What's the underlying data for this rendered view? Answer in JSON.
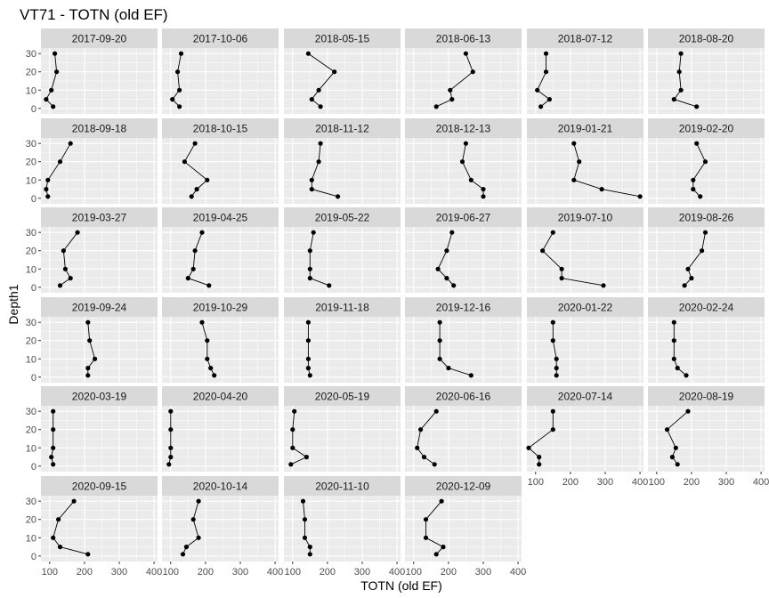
{
  "chart_data": {
    "type": "line",
    "title": "VT71  -  TOTN (old EF)",
    "xlabel": "TOTN (old EF)",
    "ylabel": "Depth1",
    "xlim": [
      75,
      410
    ],
    "ylim": [
      33,
      -3
    ],
    "x_ticks": [
      100,
      200,
      300,
      400
    ],
    "y_ticks": [
      0,
      10,
      20,
      30
    ],
    "grid": true,
    "layout": {
      "columns": 6,
      "rows": 6
    },
    "depths": [
      1,
      5,
      10,
      20,
      30
    ],
    "panels": [
      {
        "label": "2017-09-20",
        "x": [
          110,
          90,
          105,
          120,
          115
        ]
      },
      {
        "label": "2017-10-06",
        "x": [
          125,
          105,
          125,
          120,
          130
        ]
      },
      {
        "label": "2018-05-15",
        "x": [
          180,
          155,
          175,
          220,
          145
        ]
      },
      {
        "label": "2018-06-13",
        "x": [
          165,
          210,
          205,
          270,
          250
        ]
      },
      {
        "label": "2018-07-12",
        "x": [
          115,
          140,
          105,
          130,
          130
        ]
      },
      {
        "label": "2018-08-20",
        "x": [
          215,
          150,
          170,
          165,
          170
        ]
      },
      {
        "label": "2018-09-18",
        "x": [
          95,
          90,
          95,
          130,
          160
        ]
      },
      {
        "label": "2018-10-15",
        "x": [
          160,
          175,
          205,
          140,
          170
        ]
      },
      {
        "label": "2018-11-12",
        "x": [
          230,
          155,
          155,
          175,
          180
        ]
      },
      {
        "label": "2018-12-13",
        "x": [
          300,
          300,
          265,
          240,
          250
        ]
      },
      {
        "label": "2019-01-21",
        "x": [
          400,
          290,
          210,
          225,
          210
        ]
      },
      {
        "label": "2019-02-20",
        "x": [
          225,
          205,
          205,
          240,
          215
        ]
      },
      {
        "label": "2019-03-27",
        "x": [
          130,
          160,
          145,
          140,
          180
        ]
      },
      {
        "label": "2019-04-25",
        "x": [
          210,
          150,
          165,
          170,
          190
        ]
      },
      {
        "label": "2019-05-22",
        "x": [
          205,
          150,
          150,
          150,
          160
        ]
      },
      {
        "label": "2019-06-27",
        "x": [
          215,
          195,
          170,
          195,
          210
        ]
      },
      {
        "label": "2019-07-10",
        "x": [
          295,
          175,
          175,
          120,
          150
        ]
      },
      {
        "label": "2019-08-26",
        "x": [
          180,
          200,
          190,
          230,
          240
        ]
      },
      {
        "label": "2019-09-24",
        "x": [
          210,
          210,
          230,
          215,
          210
        ]
      },
      {
        "label": "2019-10-29",
        "x": [
          225,
          215,
          205,
          205,
          190
        ]
      },
      {
        "label": "2019-11-18",
        "x": [
          150,
          145,
          145,
          145,
          145
        ]
      },
      {
        "label": "2019-12-16",
        "x": [
          265,
          200,
          175,
          175,
          175
        ]
      },
      {
        "label": "2020-01-22",
        "x": [
          160,
          160,
          160,
          150,
          150
        ]
      },
      {
        "label": "2020-02-24",
        "x": [
          185,
          160,
          150,
          150,
          150
        ]
      },
      {
        "label": "2020-03-19",
        "x": [
          110,
          105,
          110,
          110,
          110
        ]
      },
      {
        "label": "2020-04-20",
        "x": [
          95,
          100,
          100,
          100,
          100
        ]
      },
      {
        "label": "2020-05-19",
        "x": [
          95,
          140,
          100,
          100,
          105
        ]
      },
      {
        "label": "2020-06-16",
        "x": [
          160,
          130,
          110,
          120,
          165
        ]
      },
      {
        "label": "2020-07-14",
        "x": [
          110,
          110,
          80,
          150,
          150
        ]
      },
      {
        "label": "2020-08-19",
        "x": [
          160,
          145,
          155,
          130,
          190
        ]
      },
      {
        "label": "2020-09-15",
        "x": [
          210,
          130,
          110,
          125,
          170
        ]
      },
      {
        "label": "2020-10-14",
        "x": [
          135,
          145,
          180,
          165,
          180
        ]
      },
      {
        "label": "2020-11-10",
        "x": [
          150,
          150,
          135,
          135,
          130
        ]
      },
      {
        "label": "2020-12-09",
        "x": [
          165,
          185,
          135,
          135,
          180
        ]
      }
    ]
  }
}
